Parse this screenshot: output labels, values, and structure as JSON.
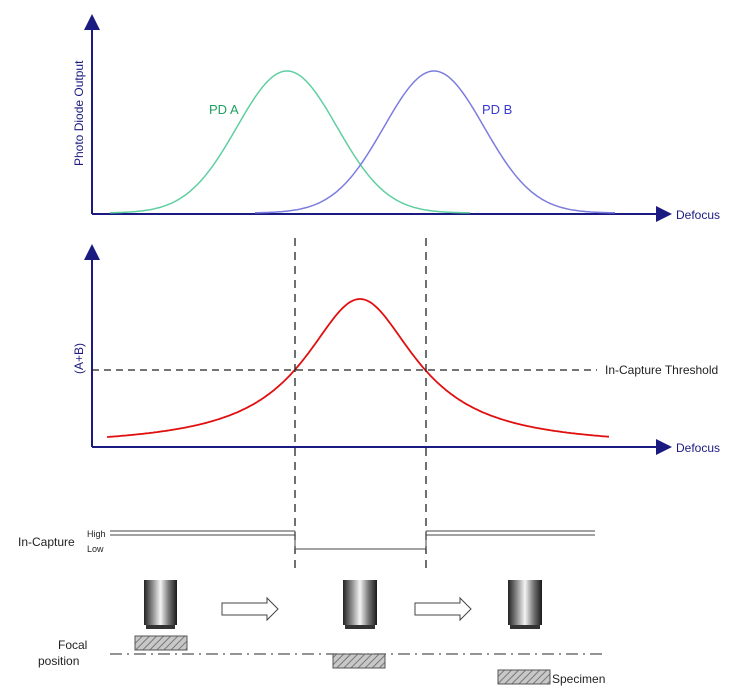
{
  "colors": {
    "axis": "#1a1a80",
    "pd_a": "#5fcfa0",
    "pd_b": "#7c7ce0",
    "sum": "#e01010",
    "dashed": "#222222",
    "pd_a_text": "#20a060",
    "pd_b_text": "#3a3ad0",
    "axis_text": "#1a1a80"
  },
  "top_plot": {
    "ylabel": "Photo Diode Output",
    "xlabel": "Defocus",
    "series": [
      {
        "name": "PD A"
      },
      {
        "name": "PD B"
      }
    ]
  },
  "middle_plot": {
    "ylabel": "(A+B)",
    "xlabel": "Defocus",
    "threshold_label": "In-Capture Threshold"
  },
  "in_capture": {
    "label": "In-Capture",
    "high": "High",
    "low": "Low"
  },
  "focal": {
    "label_line1": "Focal",
    "label_line2": "position",
    "specimen_label": "Specimen"
  }
}
